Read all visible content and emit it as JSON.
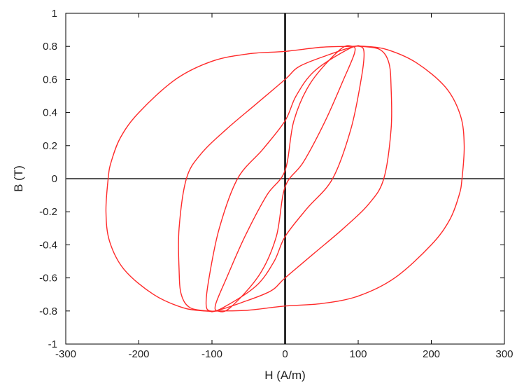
{
  "chart_data": {
    "type": "line",
    "title": "",
    "xlabel": "H (A/m)",
    "ylabel": "B (T)",
    "xlim": [
      -300,
      300
    ],
    "ylim": [
      -1,
      1
    ],
    "xticks": [
      -300,
      -200,
      -100,
      0,
      100,
      200,
      300
    ],
    "yticks": [
      -1,
      -0.8,
      -0.6,
      -0.4,
      -0.2,
      0,
      0.2,
      0.4,
      0.6,
      0.8,
      1
    ],
    "grid": false,
    "legend": "none",
    "zero_lines": true,
    "series_color": "#ff2a2a",
    "series": [
      {
        "points": [
          [
            0,
            0.77
          ],
          [
            -50,
            0.755
          ],
          [
            -100,
            0.71
          ],
          [
            -150,
            0.6
          ],
          [
            -200,
            0.4
          ],
          [
            -225,
            0.25
          ],
          [
            -238,
            0.1
          ],
          [
            -242,
            0
          ],
          [
            -245,
            -0.2
          ],
          [
            -240,
            -0.38
          ],
          [
            -220,
            -0.55
          ],
          [
            -180,
            -0.7
          ],
          [
            -140,
            -0.78
          ],
          [
            -110,
            -0.8
          ],
          [
            -90,
            -0.8
          ],
          [
            -50,
            -0.795
          ],
          [
            0,
            -0.77
          ],
          [
            50,
            -0.755
          ],
          [
            100,
            -0.71
          ],
          [
            150,
            -0.6
          ],
          [
            200,
            -0.4
          ],
          [
            225,
            -0.25
          ],
          [
            238,
            -0.1
          ],
          [
            242,
            0
          ],
          [
            245,
            0.2
          ],
          [
            240,
            0.38
          ],
          [
            220,
            0.55
          ],
          [
            180,
            0.7
          ],
          [
            140,
            0.78
          ],
          [
            110,
            0.8
          ],
          [
            90,
            0.8
          ],
          [
            50,
            0.795
          ],
          [
            0,
            0.77
          ]
        ]
      },
      {
        "points": [
          [
            0,
            0.6
          ],
          [
            -40,
            0.45
          ],
          [
            -80,
            0.3
          ],
          [
            -115,
            0.15
          ],
          [
            -135,
            0
          ],
          [
            -145,
            -0.3
          ],
          [
            -145,
            -0.55
          ],
          [
            -142,
            -0.7
          ],
          [
            -130,
            -0.78
          ],
          [
            -105,
            -0.8
          ],
          [
            -95,
            -0.8
          ],
          [
            -60,
            -0.75
          ],
          [
            -20,
            -0.68
          ],
          [
            0,
            -0.6
          ],
          [
            40,
            -0.45
          ],
          [
            80,
            -0.3
          ],
          [
            115,
            -0.15
          ],
          [
            135,
            0
          ],
          [
            145,
            0.3
          ],
          [
            145,
            0.55
          ],
          [
            142,
            0.7
          ],
          [
            130,
            0.78
          ],
          [
            105,
            0.8
          ],
          [
            95,
            0.8
          ],
          [
            60,
            0.75
          ],
          [
            20,
            0.68
          ],
          [
            0,
            0.6
          ]
        ]
      },
      {
        "points": [
          [
            0,
            0.35
          ],
          [
            -30,
            0.18
          ],
          [
            -65,
            0
          ],
          [
            -90,
            -0.3
          ],
          [
            -104,
            -0.6
          ],
          [
            -108,
            -0.76
          ],
          [
            -102,
            -0.8
          ],
          [
            -85,
            -0.78
          ],
          [
            -40,
            -0.65
          ],
          [
            -15,
            -0.5
          ],
          [
            0,
            -0.35
          ],
          [
            30,
            -0.18
          ],
          [
            65,
            0
          ],
          [
            90,
            0.3
          ],
          [
            104,
            0.6
          ],
          [
            108,
            0.76
          ],
          [
            102,
            0.8
          ],
          [
            85,
            0.78
          ],
          [
            40,
            0.65
          ],
          [
            15,
            0.5
          ],
          [
            0,
            0.35
          ]
        ]
      },
      {
        "points": [
          [
            0,
            0.05
          ],
          [
            -25,
            -0.1
          ],
          [
            -55,
            -0.35
          ],
          [
            -80,
            -0.6
          ],
          [
            -95,
            -0.76
          ],
          [
            -92,
            -0.8
          ],
          [
            -75,
            -0.78
          ],
          [
            -35,
            -0.58
          ],
          [
            -12,
            -0.35
          ],
          [
            0,
            -0.05
          ],
          [
            25,
            0.1
          ],
          [
            55,
            0.35
          ],
          [
            80,
            0.6
          ],
          [
            95,
            0.76
          ],
          [
            92,
            0.8
          ],
          [
            75,
            0.78
          ],
          [
            35,
            0.58
          ],
          [
            12,
            0.35
          ],
          [
            0,
            0.05
          ]
        ]
      }
    ]
  }
}
